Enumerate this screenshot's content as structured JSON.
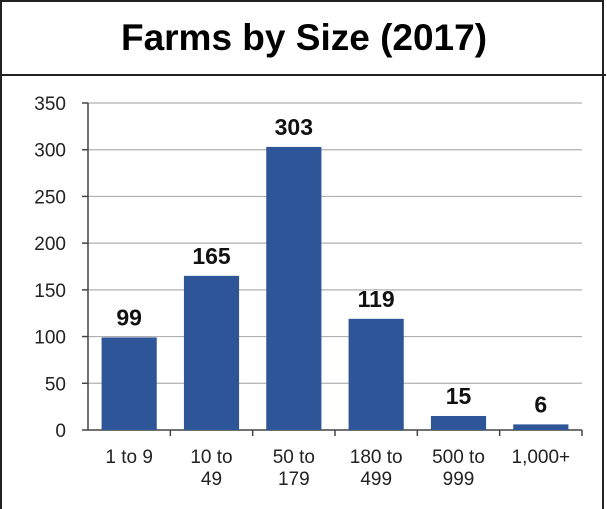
{
  "chart_data": {
    "type": "bar",
    "title": "Farms by Size (2017)",
    "xlabel": "",
    "ylabel": "",
    "categories": [
      [
        "1 to 9"
      ],
      [
        "10 to",
        "49"
      ],
      [
        "50 to",
        "179"
      ],
      [
        "180 to",
        "499"
      ],
      [
        "500 to",
        "999"
      ],
      [
        "1,000+"
      ]
    ],
    "values": [
      99,
      165,
      303,
      119,
      15,
      6
    ],
    "data_labels": [
      "99",
      "165",
      "303",
      "119",
      "15",
      "6"
    ],
    "ylim": [
      0,
      350
    ],
    "yticks": [
      "0",
      "50",
      "100",
      "150",
      "200",
      "250",
      "300",
      "350"
    ],
    "grid": true,
    "bar_color": "#2E5597"
  }
}
